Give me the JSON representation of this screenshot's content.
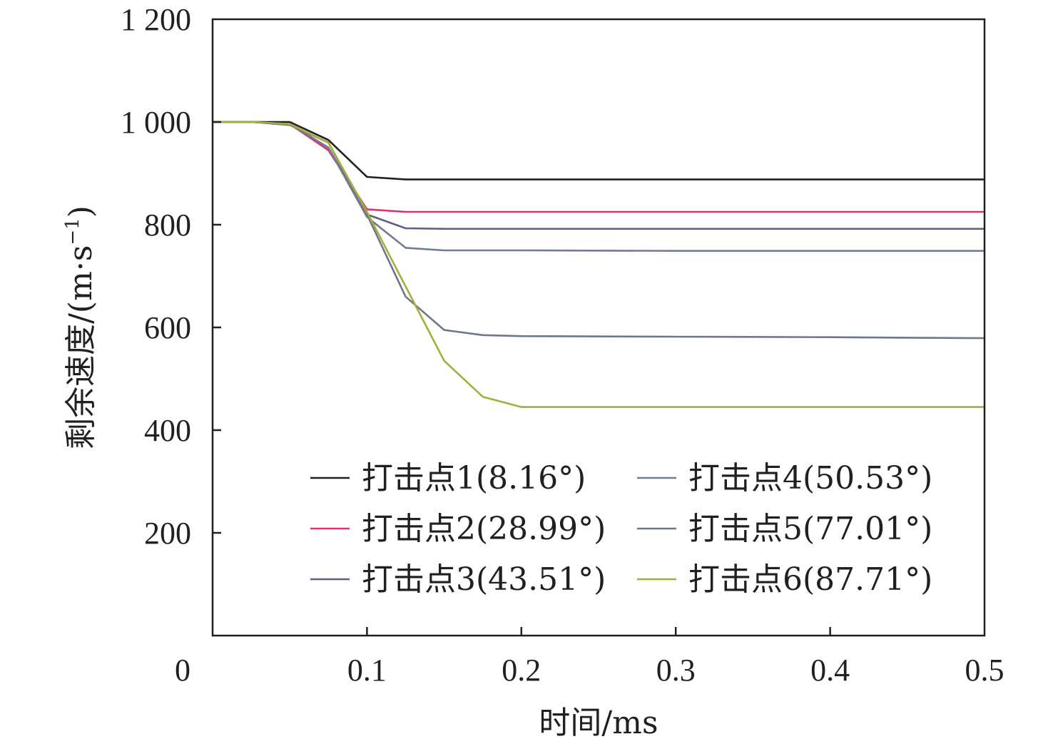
{
  "chart_data": {
    "type": "line",
    "title": "",
    "xlabel": "时间/ms",
    "ylabel": "剩余速度/(m·s",
    "ylabel_sup": "−1",
    "ylabel_close": ")",
    "xlim": [
      0,
      0.5
    ],
    "ylim": [
      0,
      1200
    ],
    "x_ticks": [
      {
        "value": 0,
        "label": "0"
      },
      {
        "value": 0.1,
        "label": "0.1"
      },
      {
        "value": 0.2,
        "label": "0.2"
      },
      {
        "value": 0.3,
        "label": "0.3"
      },
      {
        "value": 0.4,
        "label": "0.4"
      },
      {
        "value": 0.5,
        "label": "0.5"
      }
    ],
    "y_ticks": [
      {
        "value": 200,
        "label": "200"
      },
      {
        "value": 400,
        "label": "400"
      },
      {
        "value": 600,
        "label": "600"
      },
      {
        "value": 800,
        "label": "800"
      },
      {
        "value": 1000,
        "label": "1 000"
      },
      {
        "value": 1200,
        "label": "1 200"
      }
    ],
    "grid": false,
    "legend_position": "lower-right, two columns",
    "series": [
      {
        "name": "打击点1(8.16°)",
        "color": "#231f20",
        "x": [
          0,
          0.025,
          0.05,
          0.075,
          0.1,
          0.125,
          0.15,
          0.2,
          0.3,
          0.4,
          0.5
        ],
        "y": [
          1000,
          1000,
          1000,
          965,
          893,
          888,
          888,
          888,
          888,
          888,
          888
        ]
      },
      {
        "name": "打击点2(28.99°)",
        "color": "#e0306e",
        "x": [
          0,
          0.025,
          0.05,
          0.075,
          0.1,
          0.125,
          0.15,
          0.2,
          0.3,
          0.4,
          0.5
        ],
        "y": [
          1000,
          1000,
          996,
          945,
          830,
          825,
          825,
          825,
          825,
          825,
          825
        ]
      },
      {
        "name": "打击点3(43.51°)",
        "color": "#5d6187",
        "x": [
          0,
          0.025,
          0.05,
          0.075,
          0.1,
          0.125,
          0.15,
          0.2,
          0.3,
          0.4,
          0.5
        ],
        "y": [
          1000,
          1000,
          996,
          950,
          820,
          793,
          792,
          792,
          792,
          792,
          792
        ]
      },
      {
        "name": "打击点4(50.53°)",
        "color": "#717c91",
        "x": [
          0,
          0.025,
          0.05,
          0.075,
          0.1,
          0.125,
          0.15,
          0.2,
          0.3,
          0.4,
          0.5
        ],
        "y": [
          1000,
          1000,
          996,
          950,
          815,
          755,
          750,
          750,
          749,
          749,
          749
        ]
      },
      {
        "name": "打击点5(77.01°)",
        "color": "#6c7889",
        "x": [
          0,
          0.025,
          0.05,
          0.075,
          0.1,
          0.125,
          0.15,
          0.175,
          0.2,
          0.3,
          0.4,
          0.5
        ],
        "y": [
          1000,
          1000,
          994,
          960,
          820,
          660,
          595,
          585,
          583,
          582,
          581,
          579
        ]
      },
      {
        "name": "打击点6(87.71°)",
        "color": "#a6ad3c",
        "x": [
          0,
          0.025,
          0.05,
          0.075,
          0.1,
          0.125,
          0.15,
          0.175,
          0.2,
          0.3,
          0.4,
          0.5
        ],
        "y": [
          1000,
          1000,
          996,
          960,
          825,
          680,
          535,
          465,
          445,
          445,
          445,
          445
        ]
      }
    ]
  }
}
